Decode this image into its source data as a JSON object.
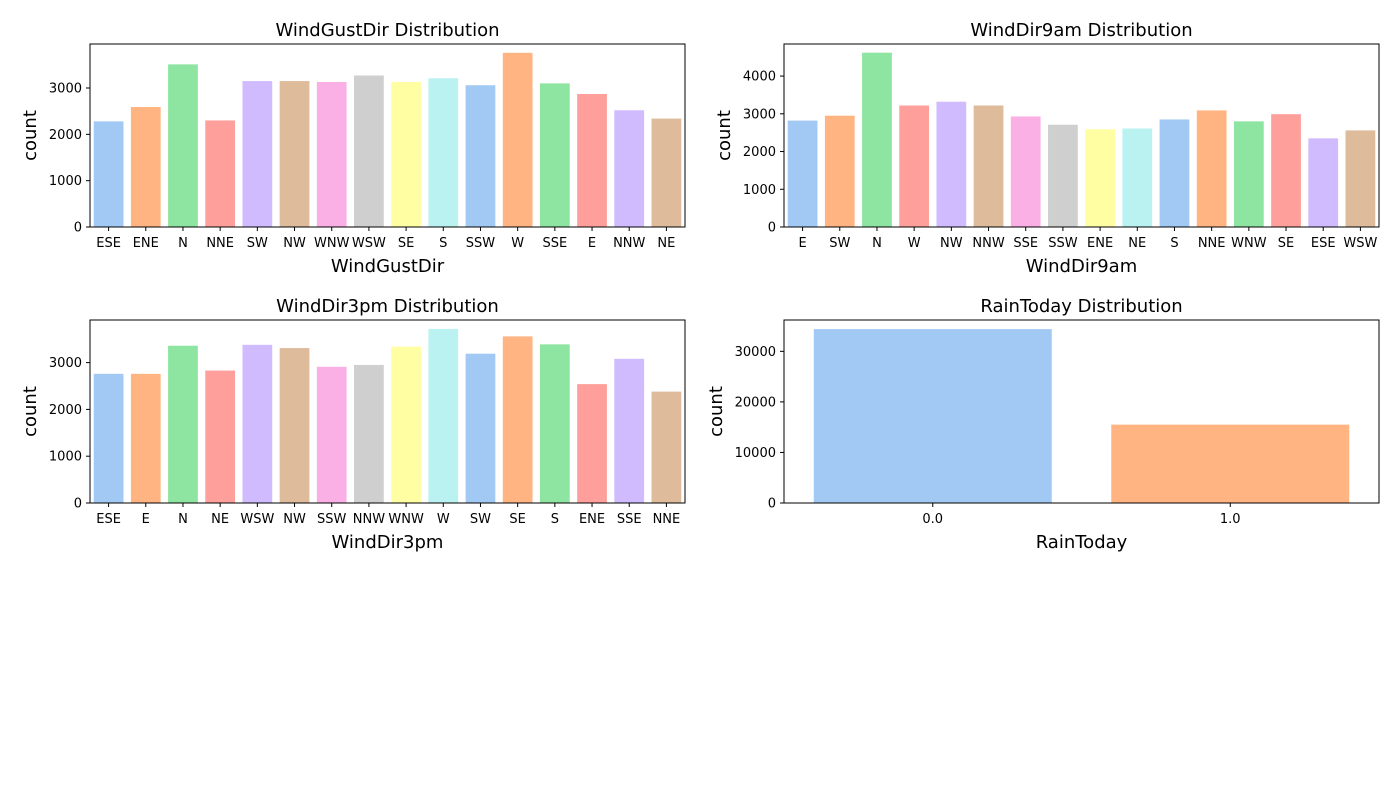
{
  "palette": [
    "#a1c9f4",
    "#ffb482",
    "#8de5a1",
    "#ff9f9b",
    "#d0bbff",
    "#debb9b",
    "#fab0e4",
    "#cfcfcf",
    "#fffea3",
    "#b9f2f0"
  ],
  "chart_data": [
    {
      "type": "bar",
      "title": "WindGustDir Distribution",
      "xlabel": "WindGustDir",
      "ylabel": "count",
      "categories": [
        "ESE",
        "ENE",
        "N",
        "NNE",
        "SW",
        "NW",
        "WNW",
        "WSW",
        "SE",
        "S",
        "SSW",
        "W",
        "SSE",
        "E",
        "NNW",
        "NE"
      ],
      "values": [
        2280,
        2590,
        3510,
        2300,
        3150,
        3150,
        3130,
        3270,
        3130,
        3210,
        3060,
        3760,
        3100,
        2870,
        2520,
        2340
      ],
      "ylim": [
        0,
        3950
      ],
      "yticks": [
        0,
        1000,
        2000,
        3000
      ],
      "grid": false,
      "legend": "none"
    },
    {
      "type": "bar",
      "title": "WindDir9am Distribution",
      "xlabel": "WindDir9am",
      "ylabel": "count",
      "categories": [
        "E",
        "SW",
        "N",
        "W",
        "NW",
        "NNW",
        "SSE",
        "SSW",
        "ENE",
        "NE",
        "S",
        "NNE",
        "WNW",
        "SE",
        "ESE",
        "WSW"
      ],
      "values": [
        2820,
        2950,
        4620,
        3220,
        3320,
        3220,
        2930,
        2710,
        2590,
        2610,
        2850,
        3090,
        2800,
        2990,
        2350,
        2560
      ],
      "ylim": [
        0,
        4850
      ],
      "yticks": [
        0,
        1000,
        2000,
        3000,
        4000
      ],
      "grid": false,
      "legend": "none"
    },
    {
      "type": "bar",
      "title": "WindDir3pm Distribution",
      "xlabel": "WindDir3pm",
      "ylabel": "count",
      "categories": [
        "ESE",
        "E",
        "N",
        "NE",
        "WSW",
        "NW",
        "SSW",
        "NNW",
        "WNW",
        "W",
        "SW",
        "SE",
        "S",
        "ENE",
        "SSE",
        "NNE"
      ],
      "values": [
        2760,
        2760,
        3360,
        2830,
        3380,
        3310,
        2910,
        2950,
        3340,
        3720,
        3190,
        3560,
        3390,
        2540,
        3080,
        2380
      ],
      "ylim": [
        0,
        3910
      ],
      "yticks": [
        0,
        1000,
        2000,
        3000
      ],
      "grid": false,
      "legend": "none"
    },
    {
      "type": "bar",
      "title": "RainToday Distribution",
      "xlabel": "RainToday",
      "ylabel": "count",
      "categories": [
        "0.0",
        "1.0"
      ],
      "values": [
        34400,
        15500
      ],
      "ylim": [
        0,
        36200
      ],
      "yticks": [
        0,
        10000,
        20000,
        30000
      ],
      "grid": false,
      "legend": "none"
    }
  ]
}
